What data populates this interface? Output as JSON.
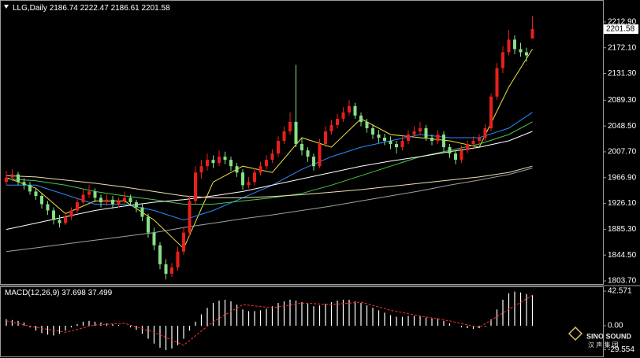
{
  "chart_data": [
    {
      "type": "candlestick",
      "title": "LLG,Daily",
      "up_color": "#e8201c",
      "down_color": "#86e086",
      "ylim": [
        1797.5,
        2247.6
      ],
      "yticks": [
        {
          "value": 2212.9,
          "label": "2212.90"
        },
        {
          "value": 2172.1,
          "label": "2172.10"
        },
        {
          "value": 2131.3,
          "label": "2131.30"
        },
        {
          "value": 2089.3,
          "label": "2089.30"
        },
        {
          "value": 2048.5,
          "label": "2048.50"
        },
        {
          "value": 2007.7,
          "label": "2007.70"
        },
        {
          "value": 1966.9,
          "label": "1966.90"
        },
        {
          "value": 1926.1,
          "label": "1926.10"
        },
        {
          "value": 1885.3,
          "label": "1885.30"
        },
        {
          "value": 1844.5,
          "label": "1844.50"
        },
        {
          "value": 1803.7,
          "label": "1803.70"
        }
      ],
      "ohlc": [
        [
          1960,
          1978,
          1955,
          1967
        ],
        [
          1967,
          1980,
          1962,
          1972
        ],
        [
          1972,
          1976,
          1955,
          1960
        ],
        [
          1960,
          1966,
          1948,
          1955
        ],
        [
          1955,
          1960,
          1940,
          1945
        ],
        [
          1945,
          1950,
          1932,
          1938
        ],
        [
          1938,
          1942,
          1918,
          1925
        ],
        [
          1925,
          1930,
          1908,
          1915
        ],
        [
          1915,
          1920,
          1893,
          1900
        ],
        [
          1900,
          1908,
          1888,
          1895
        ],
        [
          1895,
          1912,
          1892,
          1905
        ],
        [
          1905,
          1920,
          1900,
          1915
        ],
        [
          1915,
          1935,
          1910,
          1928
        ],
        [
          1928,
          1948,
          1925,
          1940
        ],
        [
          1940,
          1955,
          1935,
          1945
        ],
        [
          1945,
          1950,
          1928,
          1935
        ],
        [
          1935,
          1940,
          1920,
          1928
        ],
        [
          1928,
          1940,
          1922,
          1932
        ],
        [
          1932,
          1938,
          1918,
          1925
        ],
        [
          1925,
          1936,
          1920,
          1930
        ],
        [
          1930,
          1945,
          1926,
          1935
        ],
        [
          1935,
          1940,
          1922,
          1928
        ],
        [
          1928,
          1932,
          1912,
          1920
        ],
        [
          1920,
          1925,
          1898,
          1905
        ],
        [
          1905,
          1910,
          1872,
          1880
        ],
        [
          1880,
          1888,
          1852,
          1860
        ],
        [
          1860,
          1865,
          1822,
          1830
        ],
        [
          1830,
          1838,
          1806,
          1815
        ],
        [
          1815,
          1832,
          1810,
          1825
        ],
        [
          1825,
          1858,
          1820,
          1850
        ],
        [
          1850,
          1888,
          1845,
          1880
        ],
        [
          1880,
          1938,
          1875,
          1930
        ],
        [
          1930,
          1985,
          1925,
          1975
        ],
        [
          1975,
          1995,
          1965,
          1985
        ],
        [
          1985,
          2005,
          1978,
          1995
        ],
        [
          1995,
          2002,
          1982,
          1990
        ],
        [
          1990,
          2010,
          1985,
          2000
        ],
        [
          2000,
          2008,
          1988,
          1995
        ],
        [
          1995,
          2000,
          1978,
          1985
        ],
        [
          1985,
          1990,
          1968,
          1975
        ],
        [
          1975,
          1980,
          1948,
          1955
        ],
        [
          1955,
          1968,
          1950,
          1960
        ],
        [
          1960,
          1982,
          1955,
          1975
        ],
        [
          1975,
          1992,
          1970,
          1985
        ],
        [
          1985,
          2002,
          1980,
          1995
        ],
        [
          1995,
          2012,
          1990,
          2005
        ],
        [
          2005,
          2032,
          2000,
          2025
        ],
        [
          2025,
          2048,
          2020,
          2040
        ],
        [
          2040,
          2070,
          2035,
          2055
        ],
        [
          2055,
          2145,
          2015,
          2020
        ],
        [
          2020,
          2030,
          2002,
          2010
        ],
        [
          2010,
          2015,
          1992,
          2000
        ],
        [
          2000,
          2005,
          1978,
          1985
        ],
        [
          1985,
          2028,
          1982,
          2020
        ],
        [
          2020,
          2048,
          2015,
          2040
        ],
        [
          2040,
          2058,
          2035,
          2050
        ],
        [
          2050,
          2068,
          2045,
          2060
        ],
        [
          2060,
          2078,
          2055,
          2070
        ],
        [
          2070,
          2090,
          2065,
          2080
        ],
        [
          2080,
          2085,
          2060,
          2065
        ],
        [
          2065,
          2070,
          2048,
          2055
        ],
        [
          2055,
          2060,
          2038,
          2045
        ],
        [
          2045,
          2050,
          2028,
          2035
        ],
        [
          2035,
          2042,
          2022,
          2030
        ],
        [
          2030,
          2036,
          2018,
          2025
        ],
        [
          2025,
          2032,
          2012,
          2020
        ],
        [
          2020,
          2025,
          2005,
          2015
        ],
        [
          2015,
          2032,
          2010,
          2025
        ],
        [
          2025,
          2042,
          2020,
          2035
        ],
        [
          2035,
          2048,
          2030,
          2040
        ],
        [
          2040,
          2055,
          2035,
          2045
        ],
        [
          2045,
          2050,
          2025,
          2030
        ],
        [
          2030,
          2035,
          2018,
          2025
        ],
        [
          2025,
          2042,
          2020,
          2035
        ],
        [
          2035,
          2040,
          2008,
          2015
        ],
        [
          2015,
          2020,
          1998,
          2005
        ],
        [
          2005,
          2010,
          1988,
          1995
        ],
        [
          1995,
          2018,
          1990,
          2010
        ],
        [
          2010,
          2026,
          2005,
          2020
        ],
        [
          2020,
          2032,
          2015,
          2025
        ],
        [
          2025,
          2036,
          2020,
          2030
        ],
        [
          2030,
          2052,
          2025,
          2045
        ],
        [
          2045,
          2100,
          2040,
          2095
        ],
        [
          2095,
          2148,
          2090,
          2140
        ],
        [
          2140,
          2175,
          2132,
          2165
        ],
        [
          2165,
          2200,
          2160,
          2185
        ],
        [
          2185,
          2192,
          2162,
          2170
        ],
        [
          2170,
          2180,
          2158,
          2165
        ],
        [
          2165,
          2172,
          2150,
          2160
        ],
        [
          2186.74,
          2222.47,
          2186.61,
          2201.58
        ]
      ],
      "ma_x": [
        0,
        5,
        10,
        15,
        20,
        25,
        30,
        35,
        40,
        45,
        50,
        55,
        60,
        65,
        70,
        75,
        80,
        85,
        89
      ],
      "series": [
        {
          "color": "#f0e040",
          "values": [
            1967,
            1950,
            1910,
            1930,
            1930,
            1900,
            1855,
            1960,
            1985,
            1975,
            2030,
            2015,
            2060,
            2035,
            2030,
            2025,
            2015,
            2110,
            2170
          ]
        },
        {
          "color": "#2a8cff",
          "values": [
            1955,
            1955,
            1940,
            1925,
            1925,
            1915,
            1900,
            1915,
            1935,
            1955,
            1980,
            2000,
            2015,
            2025,
            2035,
            2030,
            2030,
            2045,
            2070
          ]
        },
        {
          "color": "#4cc44c",
          "values": [
            1965,
            1962,
            1955,
            1945,
            1938,
            1932,
            1925,
            1925,
            1930,
            1935,
            1942,
            1955,
            1970,
            1985,
            2000,
            2010,
            2020,
            2035,
            2055
          ]
        },
        {
          "color": "#ffffff",
          "values": [
            1885,
            1895,
            1905,
            1915,
            1922,
            1928,
            1932,
            1938,
            1945,
            1955,
            1965,
            1975,
            1985,
            1993,
            2000,
            2008,
            2015,
            2025,
            2040
          ]
        },
        {
          "color": "#f0e0b0",
          "values": [
            1970,
            1968,
            1963,
            1958,
            1952,
            1945,
            1938,
            1935,
            1935,
            1937,
            1940,
            1944,
            1948,
            1953,
            1958,
            1963,
            1968,
            1975,
            1985
          ]
        },
        {
          "color": "#a0a0a0",
          "values": [
            1850,
            1856,
            1862,
            1868,
            1874,
            1880,
            1888,
            1895,
            1902,
            1908,
            1915,
            1922,
            1930,
            1938,
            1946,
            1955,
            1963,
            1972,
            1982
          ]
        }
      ]
    },
    {
      "type": "macd",
      "title": "MACD(12,26,9)",
      "color": "#ffffff",
      "ylim": [
        -36.8,
        48.4
      ],
      "yticks": [
        42.571,
        {
          "value": 0,
          "label": "0.00"
        },
        -29.554
      ],
      "values": [
        8,
        7,
        6,
        4,
        -2,
        -6,
        -9,
        -11,
        -12,
        -10,
        -6,
        -2,
        2,
        5,
        6,
        5,
        4,
        3,
        2,
        1,
        0,
        -2,
        -5,
        -10,
        -16,
        -22,
        -27,
        -30,
        -28,
        -24,
        -16,
        -6,
        5,
        14,
        22,
        28,
        31,
        32,
        30,
        26,
        20,
        18,
        18,
        19,
        21,
        24,
        28,
        30,
        32,
        31,
        29,
        27,
        24,
        25,
        27,
        29,
        31,
        32,
        32,
        30,
        28,
        25,
        22,
        19,
        16,
        13,
        11,
        11,
        12,
        12,
        12,
        10,
        9,
        9,
        6,
        3,
        0,
        -2,
        -3,
        -4,
        -3,
        -1,
        8,
        20,
        32,
        40,
        42,
        41,
        39,
        37.698
      ],
      "signal": {
        "color": "#ff3030",
        "x": [
          0,
          5,
          10,
          15,
          20,
          25,
          30,
          35,
          40,
          45,
          50,
          55,
          60,
          65,
          70,
          75,
          80,
          85,
          89
        ],
        "values": [
          6,
          -2,
          -8,
          1,
          3,
          -8,
          -24,
          5,
          26,
          22,
          28,
          26,
          29,
          19,
          12,
          6,
          -2,
          20,
          37.499
        ]
      }
    }
  ],
  "watermark": {
    "brand": "SINO SOUND",
    "chinese": "汉 声 集 团"
  }
}
